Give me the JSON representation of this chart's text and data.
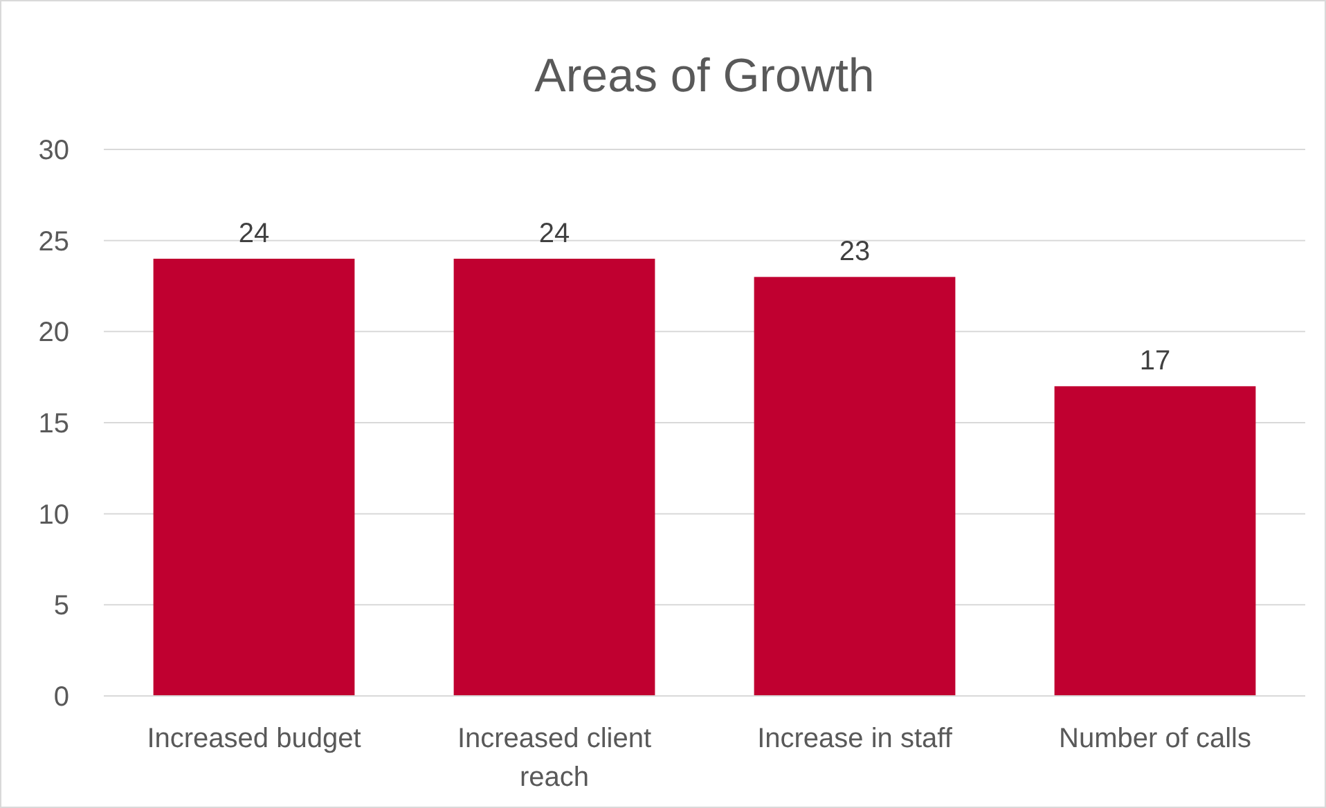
{
  "chart_data": {
    "type": "bar",
    "title": "Areas of Growth",
    "categories": [
      "Increased budget",
      "Increased client reach",
      "Increase in staff",
      "Number of calls"
    ],
    "values": [
      24,
      24,
      23,
      17
    ],
    "color": "#c00030",
    "ylim": [
      0,
      30
    ],
    "yticks": [
      0,
      5,
      10,
      15,
      20,
      25,
      30
    ],
    "grid": "y",
    "data_labels": true
  }
}
